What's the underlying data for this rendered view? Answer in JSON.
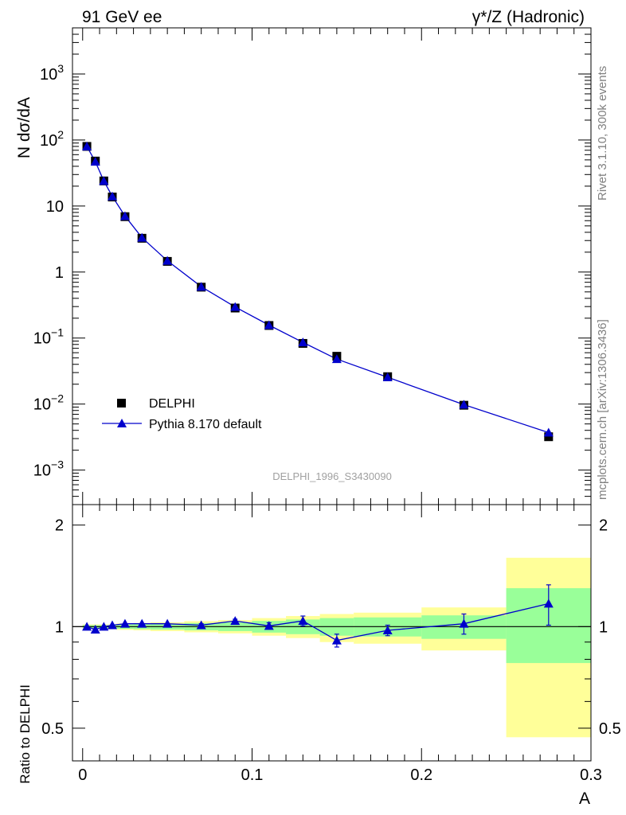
{
  "header": {
    "left_title": "91 GeV ee",
    "right_title": "γ*/Z (Hadronic)"
  },
  "side_labels": {
    "rivet": "Rivet 3.1.10,  300k events",
    "mcplots": "mcplots.cern.ch [arXiv:1306.3436]"
  },
  "analysis_id": "DELPHI_1996_S3430090",
  "chart_data": [
    {
      "type": "scatter",
      "panel": "main",
      "ylabel": "N dσ/dA",
      "xlabel": "A",
      "xlim": [
        -0.006,
        0.3
      ],
      "ylim": [
        0.0003,
        5000
      ],
      "yscale": "log",
      "y_ticks": [
        {
          "value": 0.001,
          "base": "10",
          "exp": "−3"
        },
        {
          "value": 0.01,
          "base": "10",
          "exp": "−2"
        },
        {
          "value": 0.1,
          "base": "10",
          "exp": "−1"
        },
        {
          "value": 1,
          "base": "1",
          "exp": ""
        },
        {
          "value": 10,
          "base": "10",
          "exp": ""
        },
        {
          "value": 100,
          "base": "10",
          "exp": "2"
        },
        {
          "value": 1000,
          "base": "10",
          "exp": "3"
        }
      ],
      "legend_placement": "lower-left",
      "series": [
        {
          "name": "DELPHI",
          "color": "#000000",
          "marker": "square",
          "x": [
            0.0025,
            0.0075,
            0.0125,
            0.0175,
            0.025,
            0.035,
            0.05,
            0.07,
            0.09,
            0.11,
            0.13,
            0.15,
            0.18,
            0.225,
            0.275
          ],
          "y": [
            80,
            48,
            24,
            13.7,
            6.9,
            3.25,
            1.45,
            0.59,
            0.285,
            0.155,
            0.083,
            0.053,
            0.026,
            0.0096,
            0.0032
          ]
        },
        {
          "name": "Pythia 8.170 default",
          "color": "#0000cc",
          "marker": "triangle",
          "x": [
            0.0025,
            0.0075,
            0.0125,
            0.0175,
            0.025,
            0.035,
            0.05,
            0.07,
            0.09,
            0.11,
            0.13,
            0.15,
            0.18,
            0.225,
            0.275
          ],
          "y": [
            80,
            47,
            24,
            14,
            7.05,
            3.32,
            1.48,
            0.6,
            0.296,
            0.157,
            0.086,
            0.048,
            0.0255,
            0.0098,
            0.0037
          ],
          "yerr": [
            0,
            0,
            0,
            0,
            0,
            0,
            0,
            0,
            0,
            0,
            0,
            0,
            0,
            0,
            0.0005
          ]
        }
      ]
    },
    {
      "type": "scatter",
      "panel": "ratio",
      "ylabel": "Ratio to DELPHI",
      "xlabel": "A",
      "xlim": [
        -0.006,
        0.3
      ],
      "ylim": [
        0.4,
        2.3
      ],
      "yscale": "log",
      "y_ticks": [
        {
          "value": 0.5,
          "label": "0.5"
        },
        {
          "value": 1,
          "label": "1"
        },
        {
          "value": 2,
          "label": "2"
        }
      ],
      "x_ticks": [
        {
          "value": 0,
          "label": "0"
        },
        {
          "value": 0.1,
          "label": "0.1"
        },
        {
          "value": 0.2,
          "label": "0.2"
        },
        {
          "value": 0.3,
          "label": "0.3"
        }
      ],
      "bands": {
        "yellow_color": "#ffff99",
        "green_color": "#99ff99",
        "bins": [
          {
            "x": [
              0.0,
              0.005
            ],
            "yellow": [
              0.985,
              1.015
            ],
            "green": [
              0.99,
              1.01
            ]
          },
          {
            "x": [
              0.005,
              0.01
            ],
            "yellow": [
              0.985,
              1.015
            ],
            "green": [
              0.99,
              1.01
            ]
          },
          {
            "x": [
              0.01,
              0.015
            ],
            "yellow": [
              0.985,
              1.015
            ],
            "green": [
              0.99,
              1.01
            ]
          },
          {
            "x": [
              0.015,
              0.02
            ],
            "yellow": [
              0.985,
              1.015
            ],
            "green": [
              0.99,
              1.01
            ]
          },
          {
            "x": [
              0.02,
              0.03
            ],
            "yellow": [
              0.978,
              1.022
            ],
            "green": [
              0.985,
              1.015
            ]
          },
          {
            "x": [
              0.03,
              0.04
            ],
            "yellow": [
              0.975,
              1.025
            ],
            "green": [
              0.983,
              1.017
            ]
          },
          {
            "x": [
              0.04,
              0.06
            ],
            "yellow": [
              0.97,
              1.03
            ],
            "green": [
              0.98,
              1.02
            ]
          },
          {
            "x": [
              0.06,
              0.08
            ],
            "yellow": [
              0.962,
              1.038
            ],
            "green": [
              0.975,
              1.025
            ]
          },
          {
            "x": [
              0.08,
              0.1
            ],
            "yellow": [
              0.955,
              1.045
            ],
            "green": [
              0.97,
              1.03
            ]
          },
          {
            "x": [
              0.1,
              0.12
            ],
            "yellow": [
              0.94,
              1.06
            ],
            "green": [
              0.96,
              1.04
            ]
          },
          {
            "x": [
              0.12,
              0.14
            ],
            "yellow": [
              0.925,
              1.075
            ],
            "green": [
              0.95,
              1.05
            ]
          },
          {
            "x": [
              0.14,
              0.16
            ],
            "yellow": [
              0.9,
              1.09
            ],
            "green": [
              0.94,
              1.06
            ]
          },
          {
            "x": [
              0.16,
              0.2
            ],
            "yellow": [
              0.89,
              1.1
            ],
            "green": [
              0.935,
              1.065
            ]
          },
          {
            "x": [
              0.2,
              0.25
            ],
            "yellow": [
              0.85,
              1.14
            ],
            "green": [
              0.92,
              1.08
            ]
          },
          {
            "x": [
              0.25,
              0.3
            ],
            "yellow": [
              0.47,
              1.6
            ],
            "green": [
              0.78,
              1.3
            ]
          }
        ]
      },
      "series": [
        {
          "name": "Pythia 8.170 default",
          "color": "#0000cc",
          "marker": "triangle",
          "x": [
            0.0025,
            0.0075,
            0.0125,
            0.0175,
            0.025,
            0.035,
            0.05,
            0.07,
            0.09,
            0.11,
            0.13,
            0.15,
            0.18,
            0.225,
            0.275
          ],
          "y": [
            1.0,
            0.98,
            1.0,
            1.01,
            1.02,
            1.02,
            1.02,
            1.01,
            1.04,
            1.005,
            1.04,
            0.91,
            0.975,
            1.02,
            1.17
          ],
          "yerr": [
            0.005,
            0.006,
            0.006,
            0.007,
            0.007,
            0.008,
            0.008,
            0.01,
            0.012,
            0.022,
            0.035,
            0.04,
            0.035,
            0.07,
            0.16
          ]
        }
      ]
    }
  ]
}
